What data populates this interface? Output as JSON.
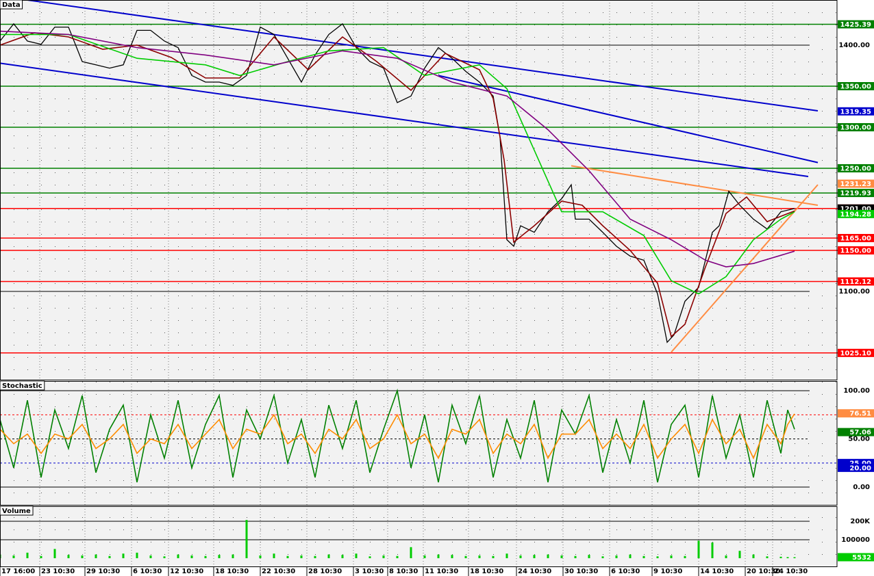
{
  "chart_data": [
    {
      "type": "line",
      "title": "Data",
      "ylim": [
        992.5,
        1455
      ],
      "xlim": [
        0,
        611
      ],
      "yticks": [
        {
          "value": 1400,
          "label": "1400.00"
        },
        {
          "value": 1100,
          "label": "1100.00"
        }
      ],
      "series": [
        {
          "color": "#000000",
          "x": [
            0,
            10,
            20,
            30,
            40,
            50,
            60,
            70,
            80,
            90,
            100,
            110,
            120,
            130,
            140,
            150,
            160,
            170,
            180,
            190,
            200,
            210,
            220,
            230,
            240,
            250,
            260,
            270,
            280,
            290,
            300,
            310,
            320,
            330,
            340,
            350,
            360,
            365,
            370,
            375,
            380,
            390,
            400,
            410,
            417,
            420,
            430,
            440,
            450,
            460,
            470,
            480,
            487,
            492,
            500,
            510,
            520,
            525,
            532,
            540,
            550,
            560,
            570,
            580
          ],
          "values": [
            1405,
            1426,
            1405,
            1401,
            1422,
            1422,
            1380,
            1376,
            1372,
            1376,
            1418,
            1418,
            1405,
            1397,
            1363,
            1355,
            1355,
            1351,
            1363,
            1422,
            1413,
            1384,
            1355,
            1388,
            1413,
            1426,
            1397,
            1380,
            1372,
            1330,
            1338,
            1372,
            1397,
            1384,
            1368,
            1355,
            1338,
            1288,
            1163,
            1155,
            1180,
            1172,
            1197,
            1213,
            1230,
            1188,
            1188,
            1172,
            1155,
            1143,
            1138,
            1097,
            1038,
            1047,
            1088,
            1105,
            1172,
            1180,
            1222,
            1205,
            1188,
            1176,
            1197,
            1201
          ]
        },
        {
          "color": "#8b0000",
          "x": [
            0,
            25,
            50,
            75,
            100,
            125,
            150,
            175,
            200,
            225,
            250,
            275,
            300,
            325,
            350,
            360,
            368,
            375,
            390,
            410,
            425,
            440,
            460,
            480,
            490,
            500,
            515,
            530,
            545,
            560,
            580
          ],
          "values": [
            1400,
            1415,
            1410,
            1395,
            1400,
            1385,
            1360,
            1360,
            1410,
            1370,
            1410,
            1380,
            1345,
            1390,
            1370,
            1335,
            1260,
            1160,
            1180,
            1210,
            1205,
            1180,
            1150,
            1110,
            1045,
            1060,
            1130,
            1195,
            1215,
            1185,
            1198
          ]
        },
        {
          "color": "#00cc00",
          "x": [
            0,
            50,
            100,
            150,
            175,
            210,
            240,
            280,
            310,
            350,
            370,
            390,
            410,
            440,
            470,
            490,
            510,
            530,
            550,
            570,
            580
          ],
          "values": [
            1413,
            1413,
            1384,
            1376,
            1363,
            1380,
            1393,
            1397,
            1363,
            1376,
            1347,
            1272,
            1197,
            1197,
            1168,
            1113,
            1097,
            1118,
            1163,
            1188,
            1197
          ]
        },
        {
          "color": "#800080",
          "x": [
            0,
            50,
            100,
            150,
            200,
            250,
            290,
            330,
            370,
            400,
            430,
            460,
            490,
            515,
            530,
            550,
            580
          ],
          "values": [
            1417,
            1413,
            1397,
            1388,
            1376,
            1393,
            1384,
            1355,
            1338,
            1297,
            1247,
            1188,
            1163,
            1138,
            1130,
            1134,
            1149
          ]
        }
      ],
      "trendlines": [
        {
          "color": "#0000cc",
          "x": [
            20,
            597
          ],
          "values": [
            1455,
            1320
          ]
        },
        {
          "color": "#0000cc",
          "x": [
            320,
            597
          ],
          "values": [
            1363,
            1257
          ]
        },
        {
          "color": "#0000cc",
          "x": [
            0,
            590
          ],
          "values": [
            1378,
            1240
          ]
        },
        {
          "color": "#ff8c42",
          "x": [
            417,
            597
          ],
          "values": [
            1253,
            1205
          ]
        },
        {
          "color": "#ff8c42",
          "x": [
            490,
            597
          ],
          "values": [
            1026,
            1230
          ]
        }
      ],
      "levels": [
        {
          "value": 1425.39,
          "color": "#008000"
        },
        {
          "value": 1350,
          "label": "1350.00",
          "color": "#008000"
        },
        {
          "value": 1300,
          "label": "1300.00",
          "color": "#008000"
        },
        {
          "value": 1250,
          "label": "1250.00",
          "color": "#008000"
        },
        {
          "value": 1219.93,
          "color": "#008000"
        },
        {
          "value": 1201,
          "label": "1201.00",
          "color": "#ff0000"
        },
        {
          "value": 1165,
          "label": "1165.00",
          "color": "#ff0000"
        },
        {
          "value": 1150,
          "label": "1150.00",
          "color": "#ff0000"
        },
        {
          "value": 1112.12,
          "color": "#ff0000"
        },
        {
          "value": 1025.1,
          "label": "1025.10",
          "color": "#ff0000"
        }
      ],
      "markers": [
        {
          "value": 1319.35,
          "color": "#0000cc"
        },
        {
          "value": 1231.23,
          "color": "#ff8c42"
        },
        {
          "value": 1201,
          "label": "1201.00",
          "color": "#000000"
        },
        {
          "value": 1194.28,
          "color": "#00cc00"
        }
      ]
    },
    {
      "type": "line",
      "title": "Stochastic",
      "ylim": [
        -18.4,
        110
      ],
      "xlim": [
        0,
        611
      ],
      "yticks": [
        {
          "value": 100,
          "label": "100.00"
        },
        {
          "value": 50,
          "label": "50.00"
        },
        {
          "value": 0,
          "label": "0.00"
        }
      ],
      "series": [
        {
          "color": "#008000",
          "x": [
            0,
            10,
            20,
            30,
            40,
            50,
            60,
            70,
            80,
            90,
            100,
            110,
            120,
            130,
            140,
            150,
            160,
            170,
            180,
            190,
            200,
            210,
            220,
            230,
            240,
            250,
            260,
            270,
            280,
            290,
            300,
            310,
            320,
            330,
            340,
            350,
            360,
            370,
            380,
            390,
            400,
            410,
            420,
            430,
            440,
            450,
            460,
            470,
            480,
            490,
            500,
            510,
            520,
            530,
            540,
            550,
            560,
            570,
            575,
            580
          ],
          "values": [
            70,
            20,
            90,
            10,
            80,
            40,
            95,
            15,
            60,
            85,
            5,
            75,
            30,
            90,
            20,
            65,
            95,
            10,
            80,
            50,
            95,
            25,
            70,
            10,
            85,
            40,
            90,
            15,
            60,
            100,
            20,
            75,
            5,
            85,
            45,
            95,
            10,
            70,
            30,
            90,
            5,
            80,
            55,
            95,
            15,
            70,
            25,
            90,
            5,
            65,
            85,
            10,
            95,
            30,
            75,
            10,
            90,
            35,
            80,
            60
          ]
        },
        {
          "color": "#ff8c00",
          "x": [
            0,
            10,
            20,
            30,
            40,
            50,
            60,
            70,
            80,
            90,
            100,
            110,
            120,
            130,
            140,
            150,
            160,
            170,
            180,
            190,
            200,
            210,
            220,
            230,
            240,
            250,
            260,
            270,
            280,
            290,
            300,
            310,
            320,
            330,
            340,
            350,
            360,
            370,
            380,
            390,
            400,
            410,
            420,
            430,
            440,
            450,
            460,
            470,
            480,
            490,
            500,
            510,
            520,
            530,
            540,
            550,
            560,
            570,
            575,
            580
          ],
          "values": [
            60,
            45,
            55,
            35,
            55,
            50,
            65,
            40,
            50,
            65,
            35,
            50,
            45,
            65,
            40,
            55,
            70,
            40,
            60,
            55,
            75,
            45,
            55,
            35,
            60,
            50,
            70,
            40,
            50,
            75,
            45,
            55,
            30,
            60,
            55,
            70,
            35,
            55,
            45,
            65,
            30,
            55,
            55,
            70,
            40,
            55,
            40,
            65,
            30,
            50,
            65,
            35,
            70,
            45,
            60,
            30,
            65,
            45,
            65,
            76
          ]
        }
      ],
      "levels": [
        {
          "value": 75,
          "color": "#ff0000",
          "dashed": true
        },
        {
          "value": 25,
          "label": "25.00",
          "color": "#0000cc",
          "dashed": true
        }
      ],
      "markers": [
        {
          "value": 76.51,
          "color": "#ff8c42"
        },
        {
          "value": 57.06,
          "color": "#008000"
        },
        {
          "value": 20,
          "label": "20.00",
          "color": "#0000cc"
        }
      ]
    },
    {
      "type": "bar",
      "title": "Volume",
      "ylim": [
        -44444,
        281481
      ],
      "xlim": [
        0,
        611
      ],
      "color": "#00cc00",
      "yticks": [
        {
          "value": 200000,
          "label": "200K"
        },
        100000
      ],
      "x": [
        0,
        10,
        20,
        30,
        40,
        50,
        60,
        70,
        80,
        90,
        100,
        110,
        120,
        130,
        140,
        150,
        160,
        170,
        180,
        190,
        200,
        210,
        220,
        230,
        240,
        250,
        260,
        270,
        280,
        290,
        300,
        310,
        320,
        330,
        340,
        350,
        360,
        370,
        380,
        390,
        400,
        410,
        420,
        430,
        440,
        450,
        460,
        470,
        480,
        490,
        500,
        510,
        520,
        530,
        540,
        550,
        560,
        570,
        575,
        580
      ],
      "values": [
        20000,
        15000,
        30000,
        12000,
        50000,
        18000,
        15000,
        20000,
        12000,
        25000,
        30000,
        15000,
        10000,
        20000,
        15000,
        12000,
        18000,
        20000,
        207000,
        15000,
        25000,
        12000,
        15000,
        12000,
        20000,
        18000,
        25000,
        10000,
        15000,
        12000,
        60000,
        15000,
        20000,
        18000,
        12000,
        15000,
        12000,
        25000,
        15000,
        18000,
        20000,
        15000,
        12000,
        18000,
        10000,
        15000,
        20000,
        12000,
        10000,
        15000,
        12000,
        95000,
        85000,
        15000,
        40000,
        20000,
        10000,
        8000,
        6000,
        5532
      ],
      "markers": [
        {
          "value": 5532,
          "color": "#00cc00"
        }
      ],
      "xticks": [
        {
          "value": 0,
          "label": "17 16:00"
        },
        {
          "value": 29,
          "label": "23 10:30"
        },
        {
          "value": 62,
          "label": "29 10:30"
        },
        {
          "value": 96,
          "label": "6 10:30"
        },
        {
          "value": 123,
          "label": "12 10:30"
        },
        {
          "value": 156,
          "label": "18 10:30"
        },
        {
          "value": 190,
          "label": "22 10:30"
        },
        {
          "value": 224,
          "label": "28 10:30"
        },
        {
          "value": 258,
          "label": "3 10:30"
        },
        {
          "value": 283,
          "label": "8 10:30"
        },
        {
          "value": 309,
          "label": "11 10:30"
        },
        {
          "value": 342,
          "label": "18 10:30"
        },
        {
          "value": 377,
          "label": "24 10:30"
        },
        {
          "value": 411,
          "label": "30 10:30"
        },
        {
          "value": 445,
          "label": "6 10:30"
        },
        {
          "value": 476,
          "label": "9 10:30"
        },
        {
          "value": 510,
          "label": "14 10:30"
        },
        {
          "value": 544,
          "label": "20 10:30"
        },
        {
          "value": 564,
          "label": "24 10:30"
        }
      ]
    }
  ]
}
